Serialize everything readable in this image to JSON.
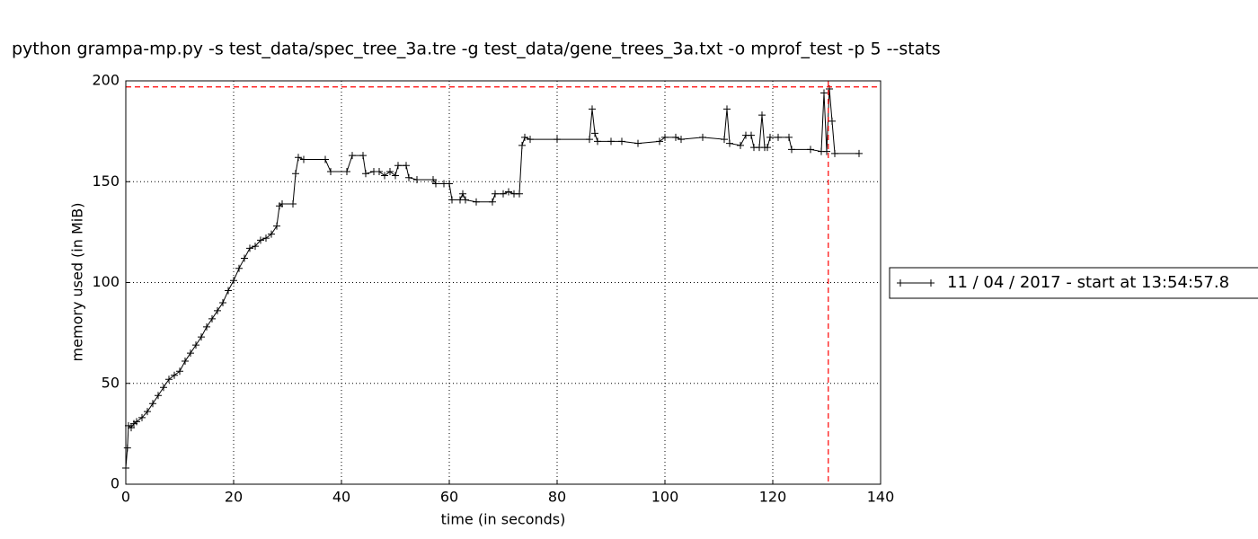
{
  "chart_data": {
    "type": "line",
    "title": "python grampa-mp.py -s test_data/spec_tree_3a.tre -g test_data/gene_trees_3a.txt -o mprof_test -p 5 --stats",
    "x_label": "time (in seconds)",
    "y_label": "memory used (in MiB)",
    "xlim": [
      0,
      140
    ],
    "ylim": [
      0,
      200
    ],
    "xticks": [
      0,
      20,
      40,
      60,
      80,
      100,
      120,
      140
    ],
    "yticks": [
      0,
      50,
      100,
      150,
      200
    ],
    "grid": true,
    "legend": "outside-right",
    "max_memory": 197,
    "max_time": 130.3,
    "max_color": "#ff0000",
    "series": [
      {
        "name": "11 / 04 / 2017 - start at 13:54:57.8",
        "color": "#000000",
        "x": [
          0,
          0.3,
          0.5,
          1,
          1.5,
          2,
          3,
          4,
          5,
          6,
          7,
          8,
          9,
          10,
          11,
          12,
          13,
          14,
          15,
          16,
          17,
          18,
          19,
          20,
          21,
          22,
          23,
          24,
          25,
          26,
          27,
          28,
          28.5,
          29,
          31,
          31.5,
          32,
          33,
          37,
          38,
          41,
          42,
          44,
          44.5,
          46,
          47,
          48,
          49,
          50,
          50.5,
          52,
          52.5,
          54,
          57,
          57.5,
          59,
          60,
          60.5,
          62,
          62.5,
          63,
          65,
          68,
          68.5,
          70,
          71,
          72,
          73,
          73.5,
          74,
          75,
          80,
          86,
          86.5,
          87,
          87.5,
          90,
          92,
          95,
          99,
          100,
          102,
          103,
          107,
          111,
          111.5,
          112,
          114,
          115,
          116,
          116.5,
          117.5,
          118,
          118.5,
          119,
          119.5,
          121,
          123,
          123.5,
          127,
          129,
          129.5,
          130,
          130.5,
          131,
          131.5,
          136
        ],
        "values": [
          8,
          18,
          29,
          28,
          30,
          31,
          33,
          36,
          40,
          44,
          48,
          52,
          54,
          56,
          61,
          65,
          69,
          73,
          78,
          82,
          86,
          90,
          96,
          101,
          107,
          112,
          117,
          118,
          121,
          122,
          124,
          128,
          138,
          139,
          139,
          154,
          162,
          161,
          161,
          155,
          155,
          163,
          163,
          154,
          155,
          155,
          153,
          155,
          153,
          158,
          158,
          152,
          151,
          151,
          149,
          149,
          149,
          141,
          141,
          144,
          141,
          140,
          140,
          144,
          144,
          145,
          144,
          144,
          168,
          172,
          171,
          171,
          171,
          186,
          174,
          170,
          170,
          170,
          169,
          170,
          172,
          172,
          171,
          172,
          171,
          186,
          169,
          168,
          173,
          173,
          167,
          167,
          183,
          167,
          167,
          172,
          172,
          172,
          166,
          166,
          165,
          194,
          165,
          196,
          180,
          164,
          164
        ]
      }
    ]
  }
}
